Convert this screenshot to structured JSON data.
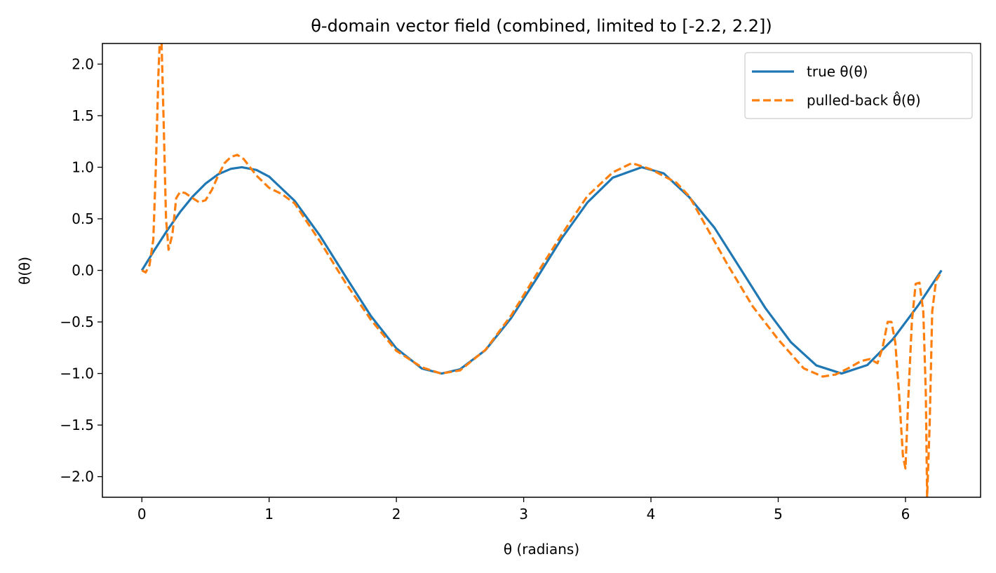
{
  "chart_data": {
    "type": "line",
    "title": "θ-domain vector field (combined, limited to [-2.2, 2.2])",
    "xlabel": "θ (radians)",
    "ylabel": "θ(θ)",
    "xlim": [
      -0.31,
      6.59
    ],
    "ylim": [
      -2.2,
      2.2
    ],
    "xticks": [
      0,
      1,
      2,
      3,
      4,
      5,
      6
    ],
    "xtick_labels": [
      "0",
      "1",
      "2",
      "3",
      "4",
      "5",
      "6"
    ],
    "yticks": [
      2.0,
      1.5,
      1.0,
      0.5,
      0.0,
      -0.5,
      -1.0,
      -1.5,
      -2.0
    ],
    "ytick_labels": [
      "2.0",
      "1.5",
      "1.0",
      "0.5",
      "0.0",
      "−0.5",
      "−1.0",
      "−1.5",
      "−2.0"
    ],
    "grid": false,
    "legend_position": "top-right",
    "series": [
      {
        "name": "true θ(θ)",
        "color": "#1f77b4",
        "style": "solid",
        "function": "sin(2θ)",
        "x": [
          0,
          0.1,
          0.2,
          0.3,
          0.4,
          0.5,
          0.6,
          0.7,
          0.785,
          0.9,
          1.0,
          1.2,
          1.4,
          1.6,
          1.8,
          2.0,
          2.2,
          2.356,
          2.5,
          2.7,
          2.9,
          3.1,
          3.3,
          3.5,
          3.7,
          3.927,
          4.1,
          4.3,
          4.5,
          4.7,
          4.9,
          5.1,
          5.3,
          5.498,
          5.7,
          5.9,
          6.1,
          6.283
        ],
        "y": [
          0.0,
          0.199,
          0.389,
          0.565,
          0.717,
          0.841,
          0.932,
          0.985,
          1.0,
          0.974,
          0.909,
          0.675,
          0.335,
          -0.058,
          -0.443,
          -0.757,
          -0.952,
          -1.0,
          -0.959,
          -0.773,
          -0.465,
          -0.083,
          0.312,
          0.657,
          0.899,
          1.0,
          0.941,
          0.711,
          0.412,
          0.022,
          -0.367,
          -0.697,
          -0.922,
          -1.0,
          -0.918,
          -0.669,
          -0.339,
          0.0
        ]
      },
      {
        "name": "pulled-back θ̂(θ)",
        "color": "#ff7f0e",
        "style": "dashed",
        "x": [
          0.0,
          0.03,
          0.06,
          0.09,
          0.11,
          0.13,
          0.14,
          0.155,
          0.17,
          0.19,
          0.21,
          0.24,
          0.27,
          0.3,
          0.34,
          0.4,
          0.45,
          0.5,
          0.55,
          0.6,
          0.65,
          0.7,
          0.75,
          0.8,
          0.85,
          0.9,
          1.0,
          1.1,
          1.2,
          1.4,
          1.6,
          1.8,
          2.0,
          2.2,
          2.35,
          2.5,
          2.7,
          2.9,
          3.1,
          3.3,
          3.5,
          3.7,
          3.85,
          4.0,
          4.2,
          4.3,
          4.4,
          4.6,
          4.8,
          5.0,
          5.2,
          5.35,
          5.45,
          5.55,
          5.65,
          5.72,
          5.78,
          5.82,
          5.86,
          5.89,
          5.92,
          5.95,
          5.98,
          6.0,
          6.02,
          6.05,
          6.08,
          6.11,
          6.14,
          6.16,
          6.17,
          6.19,
          6.21,
          6.24,
          6.27
        ],
        "y": [
          0.0,
          -0.02,
          0.05,
          0.3,
          1.0,
          1.9,
          2.2,
          2.2,
          1.5,
          0.5,
          0.2,
          0.35,
          0.7,
          0.76,
          0.75,
          0.7,
          0.66,
          0.68,
          0.78,
          0.92,
          1.04,
          1.1,
          1.12,
          1.08,
          1.0,
          0.92,
          0.8,
          0.74,
          0.65,
          0.28,
          -0.12,
          -0.48,
          -0.78,
          -0.94,
          -1.0,
          -0.97,
          -0.77,
          -0.44,
          -0.04,
          0.35,
          0.72,
          0.95,
          1.04,
          0.98,
          0.85,
          0.72,
          0.5,
          0.06,
          -0.35,
          -0.67,
          -0.95,
          -1.03,
          -1.01,
          -0.95,
          -0.88,
          -0.86,
          -0.9,
          -0.75,
          -0.5,
          -0.5,
          -0.7,
          -1.2,
          -1.8,
          -1.92,
          -1.3,
          -0.5,
          -0.13,
          -0.12,
          -0.4,
          -1.2,
          -2.2,
          -1.5,
          -0.4,
          -0.1,
          -0.04
        ]
      }
    ]
  }
}
